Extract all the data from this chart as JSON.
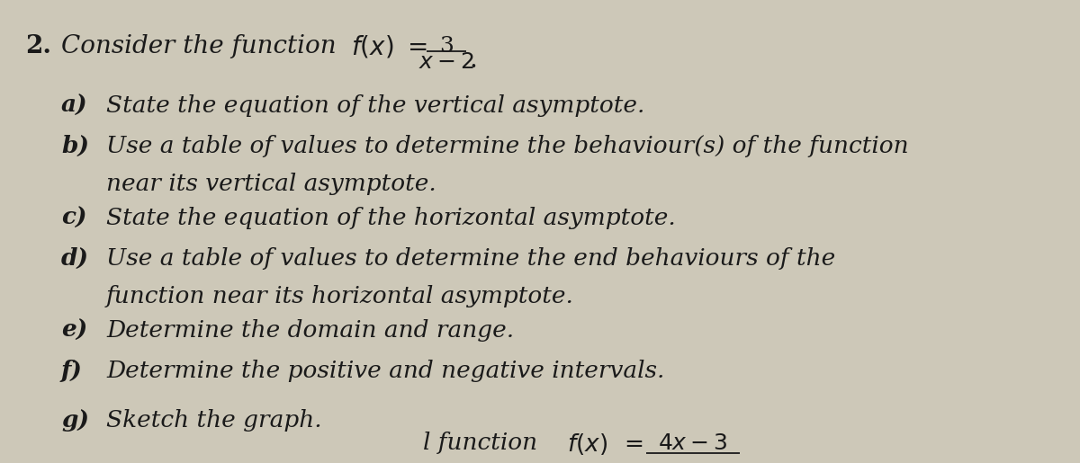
{
  "background_color": "#cdc8b8",
  "text_color": "#1a1a1a",
  "items": [
    {
      "label": "a)",
      "line1": "State the equation of the vertical asymptote.",
      "line2": null
    },
    {
      "label": "b)",
      "line1": "Use a table of values to determine the behaviour(s) of the function",
      "line2": "near its vertical asymptote."
    },
    {
      "label": "c)",
      "line1": "State the equation of the horizontal asymptote.",
      "line2": null
    },
    {
      "label": "d)",
      "line1": "Use a table of values to determine the end behaviours of the",
      "line2": "function near its horizontal asymptote."
    },
    {
      "label": "e)",
      "line1": "Determine the domain and range.",
      "line2": null
    },
    {
      "label": "f)",
      "line1": "Determine the positive and negative intervals.",
      "line2": null
    },
    {
      "label": "g)",
      "line1": "Sketch the graph.",
      "line2": null
    }
  ]
}
